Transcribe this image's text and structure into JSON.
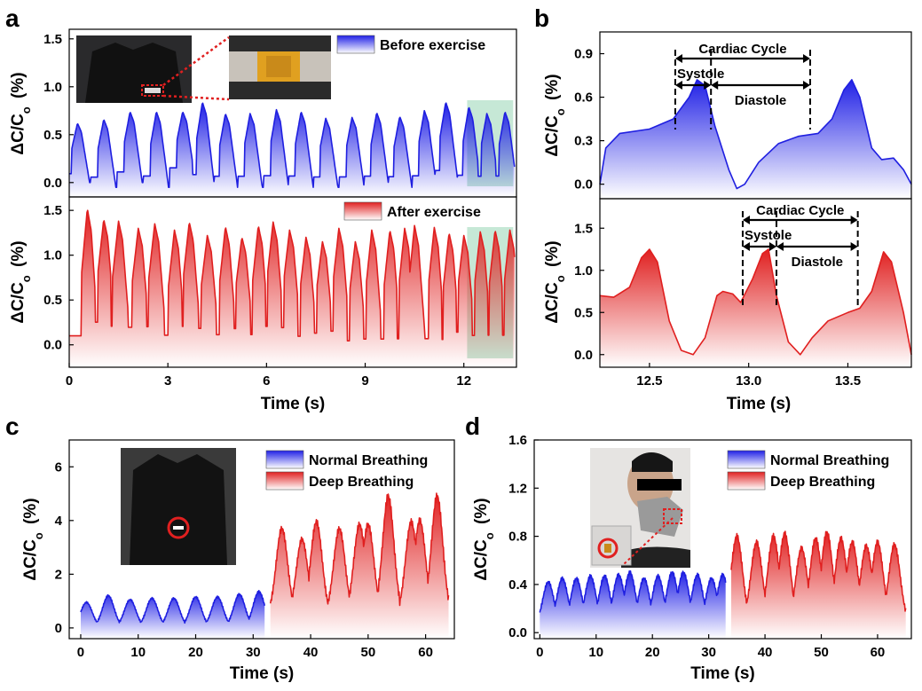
{
  "figure": {
    "panels": [
      "a",
      "b",
      "c",
      "d"
    ],
    "ylabel_main": "ΔC/C",
    "ylabel_sub": "o",
    "ylabel_unit": "(%)"
  },
  "chart_data": [
    {
      "panel": "a",
      "type": "area",
      "xlabel": "Time (s)",
      "xlim": [
        0,
        13.6
      ],
      "xticks": [
        "0",
        "3",
        "6",
        "9",
        "12"
      ],
      "subplots": [
        {
          "name": "Before exercise",
          "color": "#1f1fe0",
          "ylim": [
            -0.15,
            1.6
          ],
          "yticks": [
            "0.0",
            "0.5",
            "1.0",
            "1.5"
          ],
          "beats": [
            {
              "t": 0.25,
              "peak": 0.62,
              "base": 0.0
            },
            {
              "t": 1.05,
              "peak": 0.66,
              "base": -0.05
            },
            {
              "t": 1.85,
              "peak": 0.74,
              "base": 0.0
            },
            {
              "t": 2.65,
              "peak": 0.74,
              "base": -0.05
            },
            {
              "t": 3.45,
              "peak": 0.74,
              "base": 0.05
            },
            {
              "t": 4.05,
              "peak": 0.84,
              "base": -0.05
            },
            {
              "t": 4.75,
              "peak": 0.72,
              "base": -0.05
            },
            {
              "t": 5.5,
              "peak": 0.72,
              "base": -0.05
            },
            {
              "t": 6.3,
              "peak": 0.76,
              "base": -0.05
            },
            {
              "t": 7.05,
              "peak": 0.74,
              "base": -0.05
            },
            {
              "t": 7.8,
              "peak": 0.67,
              "base": -0.05
            },
            {
              "t": 8.6,
              "peak": 0.68,
              "base": -0.05
            },
            {
              "t": 9.35,
              "peak": 0.73,
              "base": -0.05
            },
            {
              "t": 10.05,
              "peak": 0.69,
              "base": -0.05
            },
            {
              "t": 10.8,
              "peak": 0.75,
              "base": -0.05
            },
            {
              "t": 11.45,
              "peak": 0.84,
              "base": 0.0
            },
            {
              "t": 12.15,
              "peak": 0.79,
              "base": -0.05
            },
            {
              "t": 12.7,
              "peak": 0.72,
              "base": -0.05
            },
            {
              "t": 13.25,
              "peak": 0.74,
              "base": -0.05
            }
          ],
          "highlight": [
            12.1,
            13.5
          ]
        },
        {
          "name": "After exercise",
          "color": "#e01f1f",
          "ylim": [
            -0.25,
            1.65
          ],
          "yticks": [
            "0.0",
            "0.5",
            "1.0",
            "1.5"
          ],
          "beats": [
            {
              "t": 0.55,
              "peak": 1.52,
              "base": -0.15
            },
            {
              "t": 1.05,
              "peak": 1.4,
              "base": 0.05
            },
            {
              "t": 1.5,
              "peak": 1.38,
              "base": 0.0
            },
            {
              "t": 2.1,
              "peak": 1.3,
              "base": 0.0
            },
            {
              "t": 2.6,
              "peak": 1.35,
              "base": 0.0
            },
            {
              "t": 3.2,
              "peak": 1.28,
              "base": -0.1
            },
            {
              "t": 3.65,
              "peak": 1.37,
              "base": 0.0
            },
            {
              "t": 4.2,
              "peak": 1.22,
              "base": 0.0
            },
            {
              "t": 4.75,
              "peak": 1.32,
              "base": -0.1
            },
            {
              "t": 5.25,
              "peak": 1.2,
              "base": 0.0
            },
            {
              "t": 5.75,
              "peak": 1.33,
              "base": -0.1
            },
            {
              "t": 6.2,
              "peak": 1.37,
              "base": 0.0
            },
            {
              "t": 6.7,
              "peak": 1.28,
              "base": 0.0
            },
            {
              "t": 7.2,
              "peak": 1.2,
              "base": -0.1
            },
            {
              "t": 7.7,
              "peak": 1.15,
              "base": -0.05
            },
            {
              "t": 8.2,
              "peak": 1.3,
              "base": -0.05
            },
            {
              "t": 8.7,
              "peak": 1.15,
              "base": -0.15
            },
            {
              "t": 9.2,
              "peak": 1.28,
              "base": -0.15
            },
            {
              "t": 9.75,
              "peak": 1.28,
              "base": -0.15
            },
            {
              "t": 10.2,
              "peak": 1.3,
              "base": -0.15
            },
            {
              "t": 10.5,
              "peak": 1.33,
              "base": -0.15
            },
            {
              "t": 11.1,
              "peak": 1.31,
              "base": -0.15
            },
            {
              "t": 11.55,
              "peak": 1.25,
              "base": -0.15
            },
            {
              "t": 12.0,
              "peak": 1.22,
              "base": -0.05
            },
            {
              "t": 12.5,
              "peak": 1.26,
              "base": -0.1
            },
            {
              "t": 12.95,
              "peak": 1.28,
              "base": -0.1
            },
            {
              "t": 13.4,
              "peak": 1.28,
              "base": -0.1
            }
          ],
          "highlight": [
            12.1,
            13.5
          ]
        }
      ]
    },
    {
      "panel": "b",
      "type": "area",
      "xlabel": "Time (s)",
      "xlim": [
        12.25,
        13.82
      ],
      "xticks": [
        "12.5",
        "13.0",
        "13.5"
      ],
      "subplots": [
        {
          "color": "#1f1fe0",
          "ylim": [
            -0.1,
            1.05
          ],
          "yticks": [
            "0.0",
            "0.3",
            "0.6",
            "0.9"
          ],
          "curve": [
            [
              12.25,
              0.0
            ],
            [
              12.28,
              0.25
            ],
            [
              12.35,
              0.35
            ],
            [
              12.5,
              0.38
            ],
            [
              12.62,
              0.45
            ],
            [
              12.7,
              0.6
            ],
            [
              12.74,
              0.72
            ],
            [
              12.78,
              0.68
            ],
            [
              12.83,
              0.4
            ],
            [
              12.9,
              0.1
            ],
            [
              12.94,
              -0.03
            ],
            [
              12.98,
              0.0
            ],
            [
              13.05,
              0.15
            ],
            [
              13.15,
              0.28
            ],
            [
              13.25,
              0.33
            ],
            [
              13.35,
              0.35
            ],
            [
              13.42,
              0.45
            ],
            [
              13.48,
              0.65
            ],
            [
              13.52,
              0.72
            ],
            [
              13.56,
              0.6
            ],
            [
              13.62,
              0.25
            ],
            [
              13.67,
              0.17
            ],
            [
              13.73,
              0.18
            ],
            [
              13.78,
              0.1
            ],
            [
              13.82,
              0.0
            ]
          ],
          "annotations": {
            "cardiac_cycle": "Cardiac Cycle",
            "systole": "Systole",
            "diastole": "Diastole"
          },
          "markers": [
            12.63,
            12.81,
            13.31
          ]
        },
        {
          "color": "#e01f1f",
          "ylim": [
            -0.15,
            1.85
          ],
          "yticks": [
            "0.0",
            "0.5",
            "1.0",
            "1.5"
          ],
          "curve": [
            [
              12.25,
              0.7
            ],
            [
              12.32,
              0.68
            ],
            [
              12.4,
              0.8
            ],
            [
              12.46,
              1.15
            ],
            [
              12.5,
              1.25
            ],
            [
              12.54,
              1.1
            ],
            [
              12.6,
              0.4
            ],
            [
              12.66,
              0.05
            ],
            [
              12.72,
              0.0
            ],
            [
              12.78,
              0.2
            ],
            [
              12.84,
              0.7
            ],
            [
              12.87,
              0.75
            ],
            [
              12.92,
              0.72
            ],
            [
              12.96,
              0.62
            ],
            [
              13.02,
              0.9
            ],
            [
              13.07,
              1.2
            ],
            [
              13.1,
              1.25
            ],
            [
              13.14,
              0.7
            ],
            [
              13.2,
              0.15
            ],
            [
              13.26,
              0.0
            ],
            [
              13.32,
              0.2
            ],
            [
              13.4,
              0.4
            ],
            [
              13.5,
              0.5
            ],
            [
              13.56,
              0.55
            ],
            [
              13.62,
              0.75
            ],
            [
              13.68,
              1.22
            ],
            [
              13.72,
              1.1
            ],
            [
              13.78,
              0.5
            ],
            [
              13.82,
              0.0
            ]
          ],
          "annotations": {
            "cardiac_cycle": "Cardiac Cycle",
            "systole": "Systole",
            "diastole": "Diastole"
          },
          "markers": [
            12.97,
            13.14,
            13.55
          ]
        }
      ]
    },
    {
      "panel": "c",
      "type": "area",
      "xlabel": "Time (s)",
      "xlim": [
        -2,
        65
      ],
      "ylim": [
        -0.4,
        7
      ],
      "xticks": [
        "0",
        "10",
        "20",
        "30",
        "40",
        "50",
        "60"
      ],
      "yticks": [
        "0",
        "2",
        "4",
        "6"
      ],
      "series": [
        {
          "name": "Normal  Breathing",
          "color": "#1f1fe0",
          "range": [
            0,
            32
          ],
          "peaks": [
            [
              1.0,
              0.95
            ],
            [
              4.8,
              1.2
            ],
            [
              8.6,
              1.05
            ],
            [
              12.4,
              1.1
            ],
            [
              16.2,
              1.1
            ],
            [
              20.0,
              1.15
            ],
            [
              23.8,
              1.15
            ],
            [
              27.6,
              1.25
            ],
            [
              31.0,
              1.35
            ]
          ],
          "trough": 0.05
        },
        {
          "name": "Deep Breathing",
          "color": "#e01f1f",
          "range": [
            33,
            64
          ],
          "peaks": [
            [
              35.0,
              3.7
            ],
            [
              38.5,
              3.3
            ],
            [
              41.0,
              3.95
            ],
            [
              45.0,
              3.7
            ],
            [
              48.5,
              3.85
            ],
            [
              50.0,
              3.85
            ],
            [
              53.5,
              4.9
            ],
            [
              57.5,
              3.95
            ],
            [
              59.0,
              4.0
            ],
            [
              62.0,
              4.9
            ]
          ],
          "trough": 0.5
        }
      ]
    },
    {
      "panel": "d",
      "type": "area",
      "xlabel": "Time (s)",
      "xlim": [
        -1,
        66
      ],
      "ylim": [
        -0.05,
        1.6
      ],
      "xticks": [
        "0",
        "10",
        "20",
        "30",
        "40",
        "50",
        "60"
      ],
      "yticks": [
        "0.0",
        "0.4",
        "0.8",
        "1.2",
        "1.6"
      ],
      "series": [
        {
          "name": "Normal  Breathing",
          "color": "#1f1fe0",
          "range": [
            0,
            33
          ],
          "peaks": [
            [
              1.5,
              0.42
            ],
            [
              4.0,
              0.45
            ],
            [
              6.5,
              0.45
            ],
            [
              9.0,
              0.47
            ],
            [
              11.5,
              0.47
            ],
            [
              14.0,
              0.48
            ],
            [
              16.0,
              0.5
            ],
            [
              18.5,
              0.45
            ],
            [
              21.0,
              0.47
            ],
            [
              23.5,
              0.5
            ],
            [
              25.5,
              0.5
            ],
            [
              28.0,
              0.48
            ],
            [
              30.5,
              0.45
            ],
            [
              32.5,
              0.48
            ]
          ],
          "trough": 0.05
        },
        {
          "name": "Deep Breathing",
          "color": "#e01f1f",
          "range": [
            34,
            65
          ],
          "peaks": [
            [
              35.0,
              0.8
            ],
            [
              38.5,
              0.75
            ],
            [
              41.5,
              0.8
            ],
            [
              43.5,
              0.82
            ],
            [
              46.5,
              0.7
            ],
            [
              49.0,
              0.78
            ],
            [
              51.0,
              0.83
            ],
            [
              53.5,
              0.78
            ],
            [
              55.5,
              0.75
            ],
            [
              58.0,
              0.72
            ],
            [
              60.0,
              0.75
            ],
            [
              63.0,
              0.73
            ]
          ],
          "trough": 0.1
        }
      ]
    }
  ]
}
